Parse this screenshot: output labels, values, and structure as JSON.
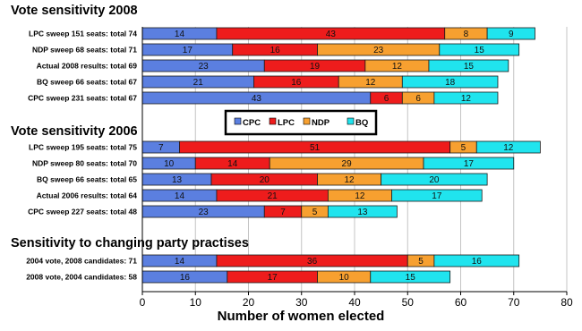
{
  "chart_data": {
    "type": "bar",
    "orientation": "horizontal",
    "stacked": true,
    "xlabel": "Number of women elected",
    "xlim": [
      0,
      80
    ],
    "x_ticks": [
      0,
      10,
      20,
      30,
      40,
      50,
      60,
      70,
      80
    ],
    "grid": "vertical",
    "legend": {
      "position": "center",
      "entries": [
        "CPC",
        "LPC",
        "NDP",
        "BQ"
      ]
    },
    "series": [
      {
        "name": "CPC",
        "color": "#5b7fe0"
      },
      {
        "name": "LPC",
        "color": "#ee1c1c"
      },
      {
        "name": "NDP",
        "color": "#f7a030"
      },
      {
        "name": "BQ",
        "color": "#20e4ee"
      }
    ],
    "groups": [
      {
        "title": "Vote sensitivity 2008",
        "bars": [
          {
            "label": "LPC sweep 151 seats: total 74",
            "values": [
              14,
              43,
              8,
              9
            ]
          },
          {
            "label": "NDP sweep 68 seats: total 71",
            "values": [
              17,
              16,
              23,
              15
            ]
          },
          {
            "label": "Actual 2008 results: total 69",
            "values": [
              23,
              19,
              12,
              15
            ]
          },
          {
            "label": "BQ sweep  66 seats: total 67",
            "values": [
              21,
              16,
              12,
              18
            ]
          },
          {
            "label": "CPC sweep 231 seats: total 67",
            "values": [
              43,
              6,
              6,
              12
            ]
          }
        ]
      },
      {
        "title": "Vote sensitivity 2006",
        "bars": [
          {
            "label": "LPC sweep 195 seats: total 75",
            "values": [
              7,
              51,
              5,
              12
            ]
          },
          {
            "label": "NDP sweep  80 seats: total 70",
            "values": [
              10,
              14,
              29,
              17
            ]
          },
          {
            "label": "BQ  sweep  66 seats: total 65",
            "values": [
              13,
              20,
              12,
              20
            ]
          },
          {
            "label": "Actual 2006 results: total 64",
            "values": [
              14,
              21,
              12,
              17
            ]
          },
          {
            "label": "CPC sweep 227 seats: total 48",
            "values": [
              23,
              7,
              5,
              13
            ]
          }
        ]
      },
      {
        "title": "Sensitivity to changing party practises",
        "bars": [
          {
            "label": "2004 vote, 2008 candidates: 71",
            "values": [
              14,
              36,
              5,
              16
            ]
          },
          {
            "label": "2008 vote, 2004 candidates: 58",
            "values": [
              16,
              17,
              10,
              15
            ]
          }
        ]
      }
    ]
  }
}
